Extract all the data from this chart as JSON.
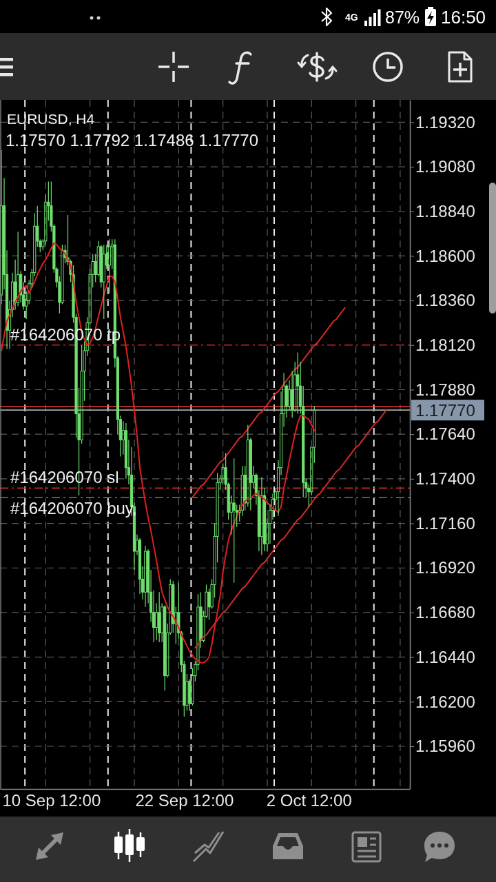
{
  "chart_data": {
    "type": "candlestick",
    "title": "EURUSD, H4",
    "subtitle": "1.17570 1.17792 1.17486 1.17770",
    "color": "#6fe06f",
    "categories": [
      null,
      null,
      null,
      null,
      null,
      null,
      null,
      null,
      null,
      null,
      null,
      null,
      null,
      null,
      null,
      null,
      null,
      null,
      "10 Sep 12:00",
      null,
      null,
      null,
      null,
      null,
      null,
      null,
      null,
      null,
      null,
      null,
      null,
      null,
      null,
      null,
      null,
      null,
      null,
      null,
      null,
      null,
      null,
      null,
      null,
      null,
      null,
      null,
      null,
      null,
      null,
      null,
      null,
      null,
      null,
      null,
      null,
      null,
      null,
      null,
      null,
      null,
      null,
      null,
      null,
      null,
      null,
      null,
      "22 Sep 12:00",
      null,
      null,
      null,
      null,
      null,
      null,
      null,
      null,
      null,
      null,
      null,
      null,
      null,
      null,
      null,
      null,
      null,
      null,
      null,
      null,
      null,
      null,
      null,
      null,
      null,
      null,
      null,
      null,
      null,
      null,
      null,
      null,
      null,
      null,
      null,
      null,
      null,
      null,
      null,
      null,
      null,
      null,
      null,
      null,
      "2 Oct 12:00",
      null,
      null,
      null,
      null,
      null,
      null,
      null,
      null,
      null,
      null,
      null,
      null,
      null,
      null,
      null,
      null,
      null,
      null,
      null,
      null,
      null,
      null,
      null,
      null,
      null,
      null,
      null,
      null,
      null,
      null,
      null,
      null,
      null,
      null,
      null,
      null
    ],
    "ohlc": [
      [
        1.1839,
        1.1917,
        1.1834,
        1.1887
      ],
      [
        1.1887,
        1.1902,
        1.1842,
        1.185
      ],
      [
        1.185,
        1.1863,
        1.181,
        1.182
      ],
      [
        1.182,
        1.1836,
        1.181,
        1.1831
      ],
      [
        1.1831,
        1.1851,
        1.1827,
        1.1846
      ],
      [
        1.1846,
        1.1858,
        1.1831,
        1.1835
      ],
      [
        1.1835,
        1.1873,
        1.1833,
        1.185
      ],
      [
        1.185,
        1.1852,
        1.1835,
        1.1839
      ],
      [
        1.1839,
        1.1846,
        1.1831,
        1.1833
      ],
      [
        1.1833,
        1.1841,
        1.1826,
        1.1836
      ],
      [
        1.1836,
        1.1847,
        1.1834,
        1.1845
      ],
      [
        1.1845,
        1.1853,
        1.1843,
        1.1851
      ],
      [
        1.1851,
        1.1883,
        1.1849,
        1.1876
      ],
      [
        1.1876,
        1.1887,
        1.1865,
        1.1868
      ],
      [
        1.1868,
        1.1869,
        1.1862,
        1.1865
      ],
      [
        1.1865,
        1.1869,
        1.1863,
        1.1868
      ],
      [
        1.1868,
        1.1893,
        1.1866,
        1.1889
      ],
      [
        1.1889,
        1.19,
        1.1879,
        1.1887
      ],
      [
        1.1887,
        1.19,
        1.1873,
        1.1876
      ],
      [
        1.1876,
        1.1877,
        1.1851,
        1.1853
      ],
      [
        1.1853,
        1.1854,
        1.1843,
        1.1846
      ],
      [
        1.1846,
        1.1849,
        1.1829,
        1.1835
      ],
      [
        1.1835,
        1.1866,
        1.1834,
        1.1863
      ],
      [
        1.1863,
        1.1866,
        1.1856,
        1.1859
      ],
      [
        1.1859,
        1.1882,
        1.1855,
        1.1857
      ],
      [
        1.1857,
        1.1858,
        1.1846,
        1.185
      ],
      [
        1.185,
        1.1855,
        1.1824,
        1.1827
      ],
      [
        1.1827,
        1.1829,
        1.1762,
        1.1775
      ],
      [
        1.1775,
        1.1789,
        1.1731,
        1.1761
      ],
      [
        1.1761,
        1.1812,
        1.1759,
        1.1798
      ],
      [
        1.1798,
        1.1814,
        1.1782,
        1.1809
      ],
      [
        1.1809,
        1.1827,
        1.1806,
        1.1824
      ],
      [
        1.1824,
        1.1853,
        1.1823,
        1.185
      ],
      [
        1.185,
        1.1861,
        1.1843,
        1.1857
      ],
      [
        1.1857,
        1.1861,
        1.1846,
        1.185
      ],
      [
        1.185,
        1.1868,
        1.1849,
        1.1865
      ],
      [
        1.1865,
        1.1866,
        1.1843,
        1.1846
      ],
      [
        1.1846,
        1.1866,
        1.1826,
        1.1861
      ],
      [
        1.1861,
        1.1866,
        1.1853,
        1.1855
      ],
      [
        1.1855,
        1.1869,
        1.184,
        1.1865
      ],
      [
        1.1865,
        1.1869,
        1.1853,
        1.1866
      ],
      [
        1.1866,
        1.1869,
        1.18,
        1.1805
      ],
      [
        1.1805,
        1.1806,
        1.1764,
        1.1772
      ],
      [
        1.1772,
        1.1774,
        1.1752,
        1.1761
      ],
      [
        1.1761,
        1.1771,
        1.1753,
        1.1766
      ],
      [
        1.1766,
        1.177,
        1.174,
        1.1746
      ],
      [
        1.1746,
        1.1761,
        1.1737,
        1.1742
      ],
      [
        1.1742,
        1.1757,
        1.172,
        1.1725
      ],
      [
        1.1725,
        1.1727,
        1.1691,
        1.1701
      ],
      [
        1.1701,
        1.171,
        1.1699,
        1.1707
      ],
      [
        1.1707,
        1.1708,
        1.1678,
        1.1686
      ],
      [
        1.1686,
        1.1693,
        1.1675,
        1.1679
      ],
      [
        1.1679,
        1.1704,
        1.1671,
        1.1701
      ],
      [
        1.1701,
        1.1702,
        1.1673,
        1.1679
      ],
      [
        1.1679,
        1.1691,
        1.1663,
        1.1668
      ],
      [
        1.1668,
        1.168,
        1.1652,
        1.166
      ],
      [
        1.166,
        1.1673,
        1.1653,
        1.1668
      ],
      [
        1.1668,
        1.1679,
        1.1652,
        1.1657
      ],
      [
        1.1657,
        1.1673,
        1.1652,
        1.1671
      ],
      [
        1.1671,
        1.1672,
        1.1626,
        1.1634
      ],
      [
        1.1634,
        1.1662,
        1.1633,
        1.1657
      ],
      [
        1.1657,
        1.1686,
        1.1656,
        1.1683
      ],
      [
        1.1683,
        1.1685,
        1.1657,
        1.1662
      ],
      [
        1.1662,
        1.1671,
        1.1651,
        1.1668
      ],
      [
        1.1668,
        1.1684,
        1.1654,
        1.1657
      ],
      [
        1.1657,
        1.1658,
        1.1636,
        1.164
      ],
      [
        1.164,
        1.1642,
        1.1612,
        1.1618
      ],
      [
        1.1618,
        1.1635,
        1.1615,
        1.1631
      ],
      [
        1.1631,
        1.1632,
        1.1615,
        1.1619
      ],
      [
        1.1619,
        1.1638,
        1.1618,
        1.1634
      ],
      [
        1.1634,
        1.1642,
        1.1631,
        1.164
      ],
      [
        1.164,
        1.1678,
        1.1637,
        1.1671
      ],
      [
        1.1671,
        1.1679,
        1.1649,
        1.1653
      ],
      [
        1.1653,
        1.1669,
        1.1652,
        1.1666
      ],
      [
        1.1666,
        1.1683,
        1.1665,
        1.1679
      ],
      [
        1.1679,
        1.1681,
        1.1664,
        1.1671
      ],
      [
        1.1671,
        1.1686,
        1.167,
        1.1683
      ],
      [
        1.1683,
        1.1716,
        1.1676,
        1.1709
      ],
      [
        1.1709,
        1.1743,
        1.1695,
        1.1738
      ],
      [
        1.1738,
        1.1742,
        1.1734,
        1.174
      ],
      [
        1.174,
        1.1748,
        1.1737,
        1.1746
      ],
      [
        1.1746,
        1.1754,
        1.1734,
        1.1737
      ],
      [
        1.1737,
        1.1738,
        1.1718,
        1.1722
      ],
      [
        1.1722,
        1.1731,
        1.171,
        1.1727
      ],
      [
        1.1727,
        1.1751,
        1.1684,
        1.1723
      ],
      [
        1.1723,
        1.1726,
        1.1714,
        1.1722
      ],
      [
        1.1722,
        1.1726,
        1.1717,
        1.1723
      ],
      [
        1.1723,
        1.1747,
        1.172,
        1.1742
      ],
      [
        1.1742,
        1.1747,
        1.1723,
        1.1727
      ],
      [
        1.1727,
        1.1769,
        1.1725,
        1.1761
      ],
      [
        1.1761,
        1.1762,
        1.1723,
        1.1738
      ],
      [
        1.1738,
        1.1747,
        1.1735,
        1.1742
      ],
      [
        1.1742,
        1.1743,
        1.1726,
        1.1731
      ],
      [
        1.1731,
        1.1734,
        1.1701,
        1.1709
      ],
      [
        1.1709,
        1.1741,
        1.1699,
        1.1731
      ],
      [
        1.1731,
        1.1735,
        1.1701,
        1.1705
      ],
      [
        1.1705,
        1.1719,
        1.1701,
        1.1716
      ],
      [
        1.1716,
        1.1726,
        1.1705,
        1.1723
      ],
      [
        1.1723,
        1.1732,
        1.1718,
        1.1729
      ],
      [
        1.1729,
        1.1735,
        1.1723,
        1.1733
      ],
      [
        1.1733,
        1.175,
        1.172,
        1.1746
      ],
      [
        1.1746,
        1.1787,
        1.1742,
        1.1775
      ],
      [
        1.1775,
        1.1797,
        1.1768,
        1.179
      ],
      [
        1.179,
        1.1791,
        1.1773,
        1.1779
      ],
      [
        1.1779,
        1.1793,
        1.1777,
        1.1788
      ],
      [
        1.1788,
        1.1798,
        1.1773,
        1.1777
      ],
      [
        1.1777,
        1.1803,
        1.1776,
        1.1796
      ],
      [
        1.1796,
        1.1808,
        1.1775,
        1.179
      ],
      [
        1.179,
        1.1803,
        1.1775,
        1.1779
      ],
      [
        1.1779,
        1.179,
        1.173,
        1.1738
      ],
      [
        1.1738,
        1.174,
        1.173,
        1.1735
      ],
      [
        1.1735,
        1.1737,
        1.1725,
        1.1733
      ],
      [
        1.1733,
        1.1757,
        1.1731,
        1.1757
      ],
      [
        1.1757,
        1.17792,
        1.17486,
        1.1777
      ],
      null,
      null,
      null,
      null,
      null,
      null,
      null,
      null,
      null,
      null,
      null,
      null,
      null,
      null,
      null,
      null,
      null,
      null,
      null,
      null,
      null,
      null,
      null,
      null,
      null,
      null,
      null,
      null,
      null,
      null,
      null,
      null,
      null,
      null
    ],
    "series": [
      {
        "type": "line",
        "color": "#e0201e",
        "values": [
          1.1809,
          1.1817,
          1.1825,
          1.1828,
          1.1832,
          1.1835,
          1.1838,
          1.1841,
          1.1843,
          1.1844,
          1.184,
          1.1843,
          1.1846,
          1.185,
          1.1853,
          1.1856,
          1.1858,
          1.1861,
          1.1864,
          1.1867,
          1.1866,
          1.1864,
          1.1863,
          1.1861,
          1.1858,
          1.1855,
          1.1846,
          1.1835,
          1.1827,
          1.1819,
          1.1815,
          1.1812,
          1.1813,
          1.1816,
          1.1821,
          1.1827,
          1.1833,
          1.1839,
          1.1844,
          1.1849,
          1.1849,
          1.1846,
          1.1837,
          1.1827,
          1.1819,
          1.1811,
          1.1801,
          1.179,
          1.1777,
          1.1763,
          1.1746,
          1.1736,
          1.1727,
          1.1719,
          1.1712,
          1.1704,
          1.1696,
          1.1687,
          1.1679,
          1.1675,
          1.1671,
          1.1668,
          1.1666,
          1.1663,
          1.166,
          1.1656,
          1.1653,
          1.165,
          1.1647,
          1.1645,
          1.1643,
          1.1642,
          1.1641,
          1.1641,
          1.1642,
          1.1644,
          1.1651,
          1.166,
          1.1668,
          1.1677,
          1.169,
          1.1699,
          1.1707,
          1.1712,
          1.1716,
          1.172,
          1.1723,
          1.1726,
          1.1728,
          1.1729,
          1.1729,
          1.1731,
          1.1732,
          1.1731,
          1.173,
          1.1729,
          1.1727,
          1.1726,
          1.1724,
          1.1723,
          1.1722,
          1.1725,
          1.1735,
          1.1742,
          1.175,
          1.1757,
          1.1764,
          1.177,
          1.1774,
          1.1774,
          1.1773,
          1.1772,
          1.1769,
          1.1766,
          null,
          null,
          null,
          null,
          null,
          null,
          null,
          null,
          null,
          null,
          null,
          null,
          null,
          null,
          null,
          null,
          null,
          null,
          null,
          null,
          null,
          null,
          null,
          null,
          null,
          null,
          null,
          null,
          null,
          null,
          null,
          null,
          null,
          null
        ]
      },
      {
        "type": "line",
        "color": "#d42a2a",
        "values": [
          null,
          null,
          null,
          null,
          null,
          null,
          null,
          null,
          null,
          null,
          null,
          null,
          null,
          null,
          null,
          null,
          null,
          null,
          null,
          null,
          null,
          null,
          null,
          null,
          null,
          null,
          null,
          null,
          null,
          null,
          null,
          null,
          null,
          null,
          null,
          null,
          null,
          null,
          null,
          null,
          null,
          null,
          null,
          null,
          null,
          null,
          null,
          null,
          null,
          null,
          null,
          null,
          null,
          null,
          null,
          null,
          null,
          null,
          null,
          null,
          null,
          null,
          null,
          null,
          null,
          null,
          null,
          null,
          null,
          1.173,
          1.1732,
          1.1734,
          1.1736,
          1.1737,
          1.1739,
          1.1741,
          1.1743,
          1.1745,
          1.1747,
          1.1749,
          1.175,
          1.1752,
          1.1754,
          1.1756,
          1.1758,
          1.176,
          1.1762,
          1.1763,
          1.1765,
          1.1767,
          1.1769,
          1.1771,
          1.1773,
          1.1775,
          1.1776,
          1.1778,
          1.178,
          1.1782,
          1.1784,
          1.1786,
          1.1787,
          1.1789,
          1.1791,
          1.1793,
          1.1795,
          1.1797,
          1.1799,
          1.18,
          1.1802,
          1.1804,
          1.1806,
          1.1808,
          1.181,
          1.1812,
          1.1813,
          1.1815,
          1.1817,
          1.1819,
          1.1821,
          1.1823,
          1.1825,
          1.1826,
          1.1828,
          1.183,
          1.1832,
          null,
          null,
          null,
          null,
          null,
          null,
          null,
          null,
          null,
          null,
          null,
          null,
          null,
          null,
          null,
          null,
          null,
          null,
          null,
          null,
          null,
          null,
          null
        ]
      },
      {
        "type": "line",
        "color": "#d42a2a",
        "values": [
          null,
          null,
          null,
          null,
          null,
          null,
          null,
          null,
          null,
          null,
          null,
          null,
          null,
          null,
          null,
          null,
          null,
          null,
          null,
          null,
          null,
          null,
          null,
          null,
          null,
          null,
          null,
          null,
          null,
          null,
          null,
          null,
          null,
          null,
          null,
          null,
          null,
          null,
          null,
          null,
          null,
          null,
          null,
          null,
          null,
          null,
          null,
          null,
          null,
          null,
          null,
          null,
          null,
          null,
          null,
          null,
          null,
          null,
          null,
          null,
          null,
          null,
          null,
          null,
          null,
          null,
          null,
          null,
          null,
          null,
          1.1649,
          1.1651,
          1.1653,
          1.1655,
          1.1656,
          1.1658,
          1.166,
          1.1662,
          1.1664,
          1.1666,
          1.1668,
          1.1669,
          1.1671,
          1.1673,
          1.1675,
          1.1677,
          1.1679,
          1.1681,
          1.1682,
          1.1684,
          1.1686,
          1.1688,
          1.169,
          1.1692,
          1.1694,
          1.1695,
          1.1697,
          1.1699,
          1.1701,
          1.1703,
          1.1705,
          1.1707,
          1.1708,
          1.171,
          1.1712,
          1.1714,
          1.1716,
          1.1718,
          1.1719,
          1.1721,
          1.1723,
          1.1725,
          1.1727,
          1.1729,
          1.1731,
          1.1732,
          1.1734,
          1.1736,
          1.1738,
          1.174,
          1.1742,
          1.1744,
          1.1745,
          1.1747,
          1.1749,
          1.1751,
          1.1753,
          1.1755,
          1.1757,
          1.1758,
          1.176,
          1.1762,
          1.1764,
          1.1766,
          1.1768,
          1.177,
          1.1771,
          1.1773,
          1.1775,
          1.1777,
          null,
          null,
          null,
          null,
          null,
          null,
          null,
          null
        ]
      }
    ],
    "ylim": [
      1.1573,
      1.1944
    ],
    "yticks": [
      {
        "value": 1.1596,
        "label": "1.15960"
      },
      {
        "value": 1.162,
        "label": "1.16200"
      },
      {
        "value": 1.1644,
        "label": "1.16440"
      },
      {
        "value": 1.1668,
        "label": "1.16680"
      },
      {
        "value": 1.1692,
        "label": "1.16920"
      },
      {
        "value": 1.1716,
        "label": "1.17160"
      },
      {
        "value": 1.174,
        "label": "1.17400"
      },
      {
        "value": 1.1764,
        "label": "1.17640"
      },
      {
        "value": 1.1788,
        "label": "1.17880"
      },
      {
        "value": 1.1812,
        "label": "1.18120"
      },
      {
        "value": 1.1836,
        "label": "1.18360"
      },
      {
        "value": 1.186,
        "label": "1.18600"
      },
      {
        "value": 1.1884,
        "label": "1.18840"
      },
      {
        "value": 1.1908,
        "label": "1.19080"
      },
      {
        "value": 1.1932,
        "label": "1.19320"
      }
    ],
    "grid": "y",
    "ref_lines": [
      {
        "axis": "y",
        "value": 1.1812,
        "label": "#164206070 tp",
        "color": "#c62828",
        "line_style": "dashdot"
      },
      {
        "axis": "y",
        "value": 1.1735,
        "label": "#164206070 sl",
        "color": "#c62828",
        "line_style": "dashdot"
      },
      {
        "axis": "y",
        "value": 1.173,
        "label": "#164206070 buy,",
        "color": "#3a9a55",
        "line_style": "dashdot"
      },
      {
        "axis": "y",
        "value": 1.1779,
        "color": "#e53935",
        "line_style": "solid"
      },
      {
        "axis": "y",
        "value": 1.1777,
        "label": "1.17770",
        "color": "#a8a8a8",
        "line_style": "solid"
      }
    ],
    "annotations": [
      "4G",
      "87%",
      "16:50"
    ]
  }
}
